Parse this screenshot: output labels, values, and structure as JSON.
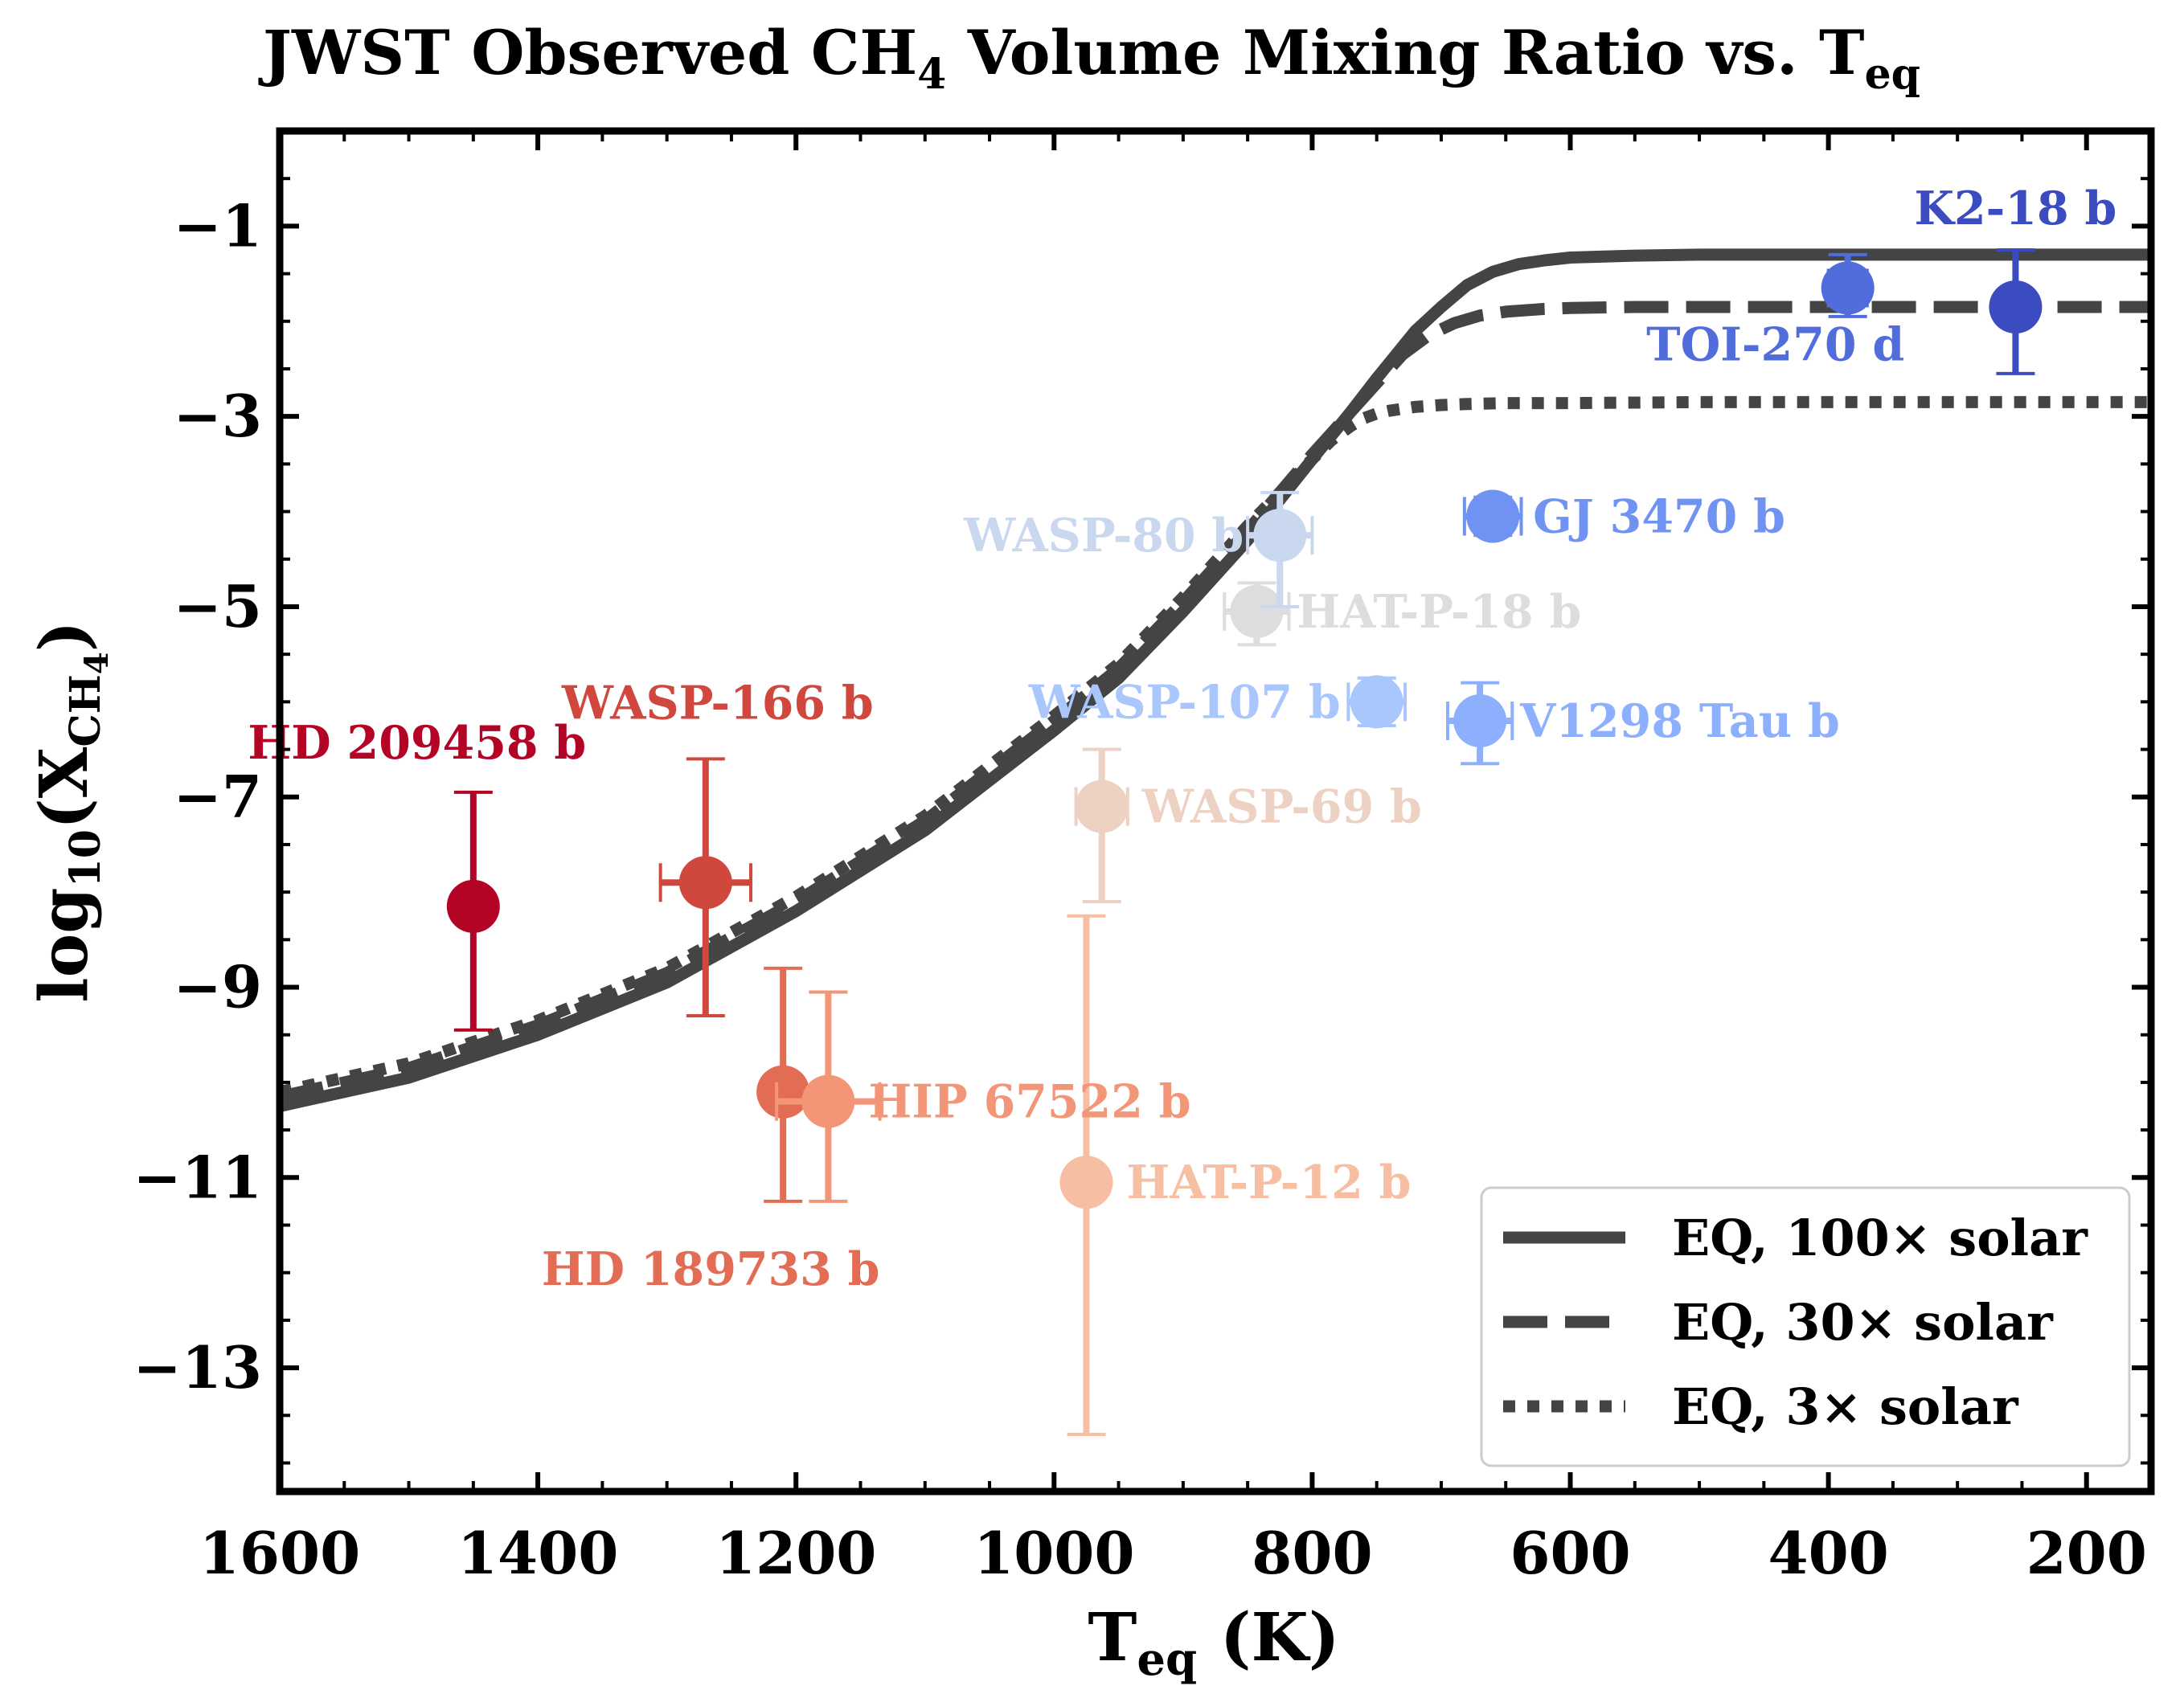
{
  "chart_data": {
    "type": "scatter",
    "title": {
      "prefix": "JWST Observed CH",
      "sub": "4",
      "middle": " Volume Mixing Ratio vs. T",
      "sub2": "eq"
    },
    "xlabel": {
      "main": "T",
      "sub": "eq",
      "rest": " (K)"
    },
    "ylabel": {
      "prefix": "log",
      "sub": "10",
      "open": "(X",
      "sub2": "CH",
      "sub3": "4",
      "close": ")"
    },
    "xlim": [
      1600,
      150
    ],
    "ylim": [
      -14.3,
      0
    ],
    "xticks": [
      1600,
      1400,
      1200,
      1000,
      800,
      600,
      400,
      200
    ],
    "xtick_labels": [
      "1600",
      "1400",
      "1200",
      "1000",
      "800",
      "600",
      "400",
      "200"
    ],
    "yticks": [
      -1,
      -3,
      -5,
      -7,
      -9,
      -11,
      -13
    ],
    "ytick_labels": [
      "−1",
      "−3",
      "−5",
      "−7",
      "−9",
      "−11",
      "−13"
    ],
    "planets": [
      {
        "name": "HD 209458 b",
        "teq": 1450,
        "y": -8.15,
        "yerr_up": 1.2,
        "yerr_down": 1.3,
        "xerr": 12,
        "color": "#b40426",
        "label_pos": "above-left"
      },
      {
        "name": "WASP-166 b",
        "teq": 1270,
        "y": -7.9,
        "yerr_up": 1.3,
        "yerr_down": 1.4,
        "xerr": 35,
        "color": "#d0473d",
        "label_pos": "above"
      },
      {
        "name": "HD 189733 b",
        "teq": 1210,
        "y": -10.1,
        "yerr_up": 1.3,
        "yerr_down": 1.15,
        "xerr": 12,
        "color": "#e36c55",
        "label_pos": "below-left"
      },
      {
        "name": "HIP 67522 b",
        "teq": 1175,
        "y": -10.2,
        "yerr_up": 1.15,
        "yerr_down": 1.05,
        "xerr": 40,
        "color": "#f39577",
        "label_pos": "right"
      },
      {
        "name": "HAT-P-12 b",
        "teq": 975,
        "y": -11.05,
        "yerr_up": 2.8,
        "yerr_down": 2.65,
        "xerr": 10,
        "color": "#f6bea2",
        "label_pos": "right"
      },
      {
        "name": "WASP-69 b",
        "teq": 963,
        "y": -7.1,
        "yerr_up": 0.6,
        "yerr_down": 1.0,
        "xerr": 20,
        "color": "#edd1c2",
        "label_pos": "right"
      },
      {
        "name": "HAT-P-18 b",
        "teq": 843,
        "y": -5.05,
        "yerr_up": 0.3,
        "yerr_down": 0.35,
        "xerr": 25,
        "color": "#dddddd",
        "label_pos": "right"
      },
      {
        "name": "WASP-80 b",
        "teq": 825,
        "y": -4.25,
        "yerr_up": 0.45,
        "yerr_down": 0.75,
        "xerr": 25,
        "color": "#c9d8ef",
        "label_pos": "left"
      },
      {
        "name": "WASP-107 b",
        "teq": 750,
        "y": -6.0,
        "yerr_up": 0.25,
        "yerr_down": 0.25,
        "xerr": 22,
        "color": "#aac7fd",
        "label_pos": "left"
      },
      {
        "name": "V1298 Tau b",
        "teq": 670,
        "y": -6.2,
        "yerr_up": 0.4,
        "yerr_down": 0.45,
        "xerr": 25,
        "color": "#8db0fe",
        "label_pos": "right"
      },
      {
        "name": "GJ 3470 b",
        "teq": 660,
        "y": -4.05,
        "yerr_up": 0.2,
        "yerr_down": 0.2,
        "xerr": 22,
        "color": "#6f92f3",
        "label_pos": "right"
      },
      {
        "name": "TOI-270 d",
        "teq": 385,
        "y": -1.65,
        "yerr_up": 0.35,
        "yerr_down": 0.3,
        "xerr": 15,
        "color": "#516ddb",
        "label_pos": "below-left"
      },
      {
        "name": "K2-18 b",
        "teq": 255,
        "y": -1.85,
        "yerr_up": 0.6,
        "yerr_down": 0.7,
        "xerr": 5,
        "color": "#3b4cc0",
        "label_pos": "above"
      }
    ],
    "series": [
      {
        "name": "EQ, 100× solar",
        "style": "solid",
        "color": "#444444",
        "plateau": -1.3,
        "x": [
          1600,
          1500,
          1400,
          1300,
          1200,
          1100,
          1000,
          950,
          900,
          850,
          800,
          770,
          750,
          720,
          700,
          680,
          660,
          640,
          620,
          600,
          550,
          500,
          400,
          300,
          150
        ],
        "y": [
          -10.25,
          -9.95,
          -9.5,
          -8.95,
          -8.2,
          -7.35,
          -6.3,
          -5.75,
          -5.05,
          -4.3,
          -3.45,
          -2.95,
          -2.6,
          -2.1,
          -1.85,
          -1.62,
          -1.48,
          -1.4,
          -1.36,
          -1.33,
          -1.31,
          -1.3,
          -1.3,
          -1.3,
          -1.3
        ]
      },
      {
        "name": "EQ, 30× solar",
        "style": "dashed",
        "color": "#444444",
        "plateau": -1.85,
        "x": [
          1600,
          1500,
          1400,
          1300,
          1200,
          1100,
          1000,
          950,
          900,
          850,
          800,
          770,
          750,
          730,
          710,
          690,
          670,
          650,
          620,
          600,
          550,
          500,
          400,
          300,
          150
        ],
        "y": [
          -10.15,
          -9.85,
          -9.4,
          -8.85,
          -8.1,
          -7.25,
          -6.2,
          -5.65,
          -4.95,
          -4.2,
          -3.4,
          -2.95,
          -2.65,
          -2.35,
          -2.15,
          -2.02,
          -1.94,
          -1.9,
          -1.87,
          -1.86,
          -1.85,
          -1.85,
          -1.85,
          -1.85,
          -1.85
        ]
      },
      {
        "name": "EQ, 3× solar",
        "style": "dotted",
        "color": "#444444",
        "plateau": -2.85,
        "x": [
          1600,
          1500,
          1400,
          1300,
          1200,
          1100,
          1000,
          950,
          900,
          850,
          800,
          785,
          770,
          760,
          750,
          740,
          730,
          720,
          700,
          680,
          650,
          600,
          500,
          400,
          300,
          150
        ],
        "y": [
          -10.1,
          -9.8,
          -9.35,
          -8.8,
          -8.05,
          -7.2,
          -6.15,
          -5.6,
          -4.9,
          -4.15,
          -3.45,
          -3.25,
          -3.1,
          -3.02,
          -2.97,
          -2.94,
          -2.92,
          -2.9,
          -2.88,
          -2.87,
          -2.86,
          -2.86,
          -2.85,
          -2.85,
          -2.85,
          -2.85
        ]
      }
    ],
    "legend": {
      "position": "lower-right",
      "entries": [
        "EQ, 100× solar",
        "EQ, 30× solar",
        "EQ, 3× solar"
      ]
    }
  }
}
